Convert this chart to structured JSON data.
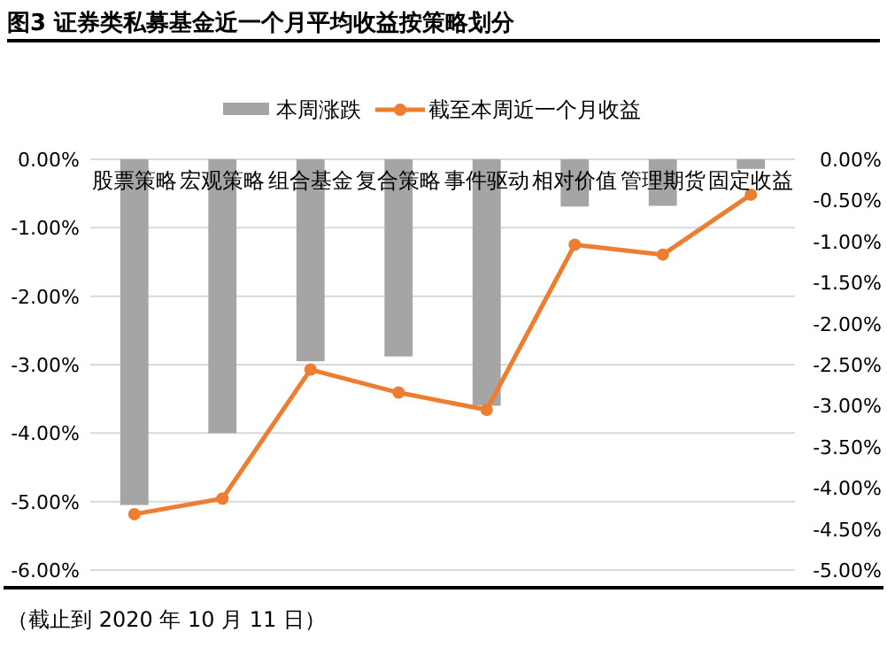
{
  "chart_data": {
    "type": "bar",
    "title": "图3 证券类私募基金近一个月平均收益按策略划分",
    "categories": [
      "股票策略",
      "宏观策略",
      "组合基金",
      "复合策略",
      "事件驱动",
      "相对价值",
      "管理期货",
      "固定收益"
    ],
    "series": [
      {
        "name": "本周涨跌",
        "color": "#a5a5a5",
        "values": [
          -5.05,
          -4.0,
          -2.95,
          -2.88,
          -3.6,
          -0.69,
          -0.68,
          -0.14
        ]
      },
      {
        "name": "截至本周近一个月收益",
        "type": "line",
        "axis": "y2",
        "color": "#ed7d31",
        "marker": "circle",
        "values": [
          -4.32,
          -4.13,
          -2.56,
          -2.84,
          -3.05,
          -1.04,
          -1.16,
          -0.43
        ]
      }
    ],
    "ylim": [
      -6,
      0
    ],
    "yticks": [
      {
        "value": 0,
        "label": "0.00%"
      },
      {
        "value": -1,
        "label": "-1.00%"
      },
      {
        "value": -2,
        "label": "-2.00%"
      },
      {
        "value": -3,
        "label": "-3.00%"
      },
      {
        "value": -4,
        "label": "-4.00%"
      },
      {
        "value": -5,
        "label": "-5.00%"
      },
      {
        "value": -6,
        "label": "-6.00%"
      }
    ],
    "y2lim": [
      -5,
      0
    ],
    "y2ticks": [
      {
        "value": 0,
        "label": "0.00%"
      },
      {
        "value": -0.5,
        "label": "-0.50%"
      },
      {
        "value": -1,
        "label": "-1.00%"
      },
      {
        "value": -1.5,
        "label": "-1.50%"
      },
      {
        "value": -2,
        "label": "-2.00%"
      },
      {
        "value": -2.5,
        "label": "-2.50%"
      },
      {
        "value": -3,
        "label": "-3.00%"
      },
      {
        "value": -3.5,
        "label": "-3.50%"
      },
      {
        "value": -4,
        "label": "-4.00%"
      },
      {
        "value": -4.5,
        "label": "-4.50%"
      },
      {
        "value": -5,
        "label": "-5.00%"
      }
    ],
    "grid": "y",
    "legend": "top",
    "annotations": [
      "（截止到 2020 年 10 月 11 日）"
    ]
  }
}
